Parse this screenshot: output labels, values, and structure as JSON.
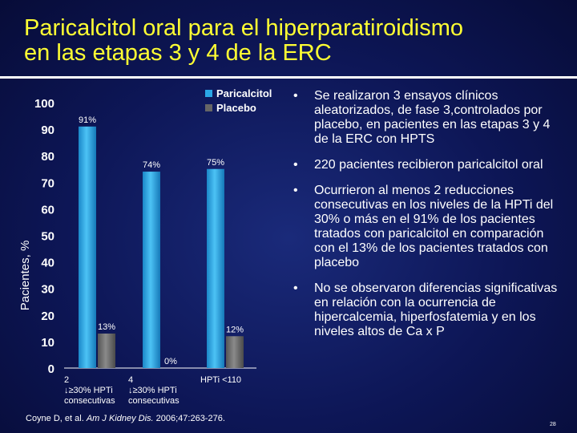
{
  "title_line1": "Paricalcitol oral para el hiperparatiroidismo",
  "title_line2": "en las etapas 3 y 4 de la ERC",
  "bullets": [
    "Se realizaron 3 ensayos clínicos aleatorizados, de fase 3,controlados por placebo, en pacientes en las etapas 3 y 4 de la ERC con HPTS",
    "220 pacientes recibieron paricalcitol oral",
    "Ocurrieron al menos 2 reducciones consecutivas en los niveles de la HPTi del 30% o más en el 91% de los pacientes tratados con paricalcitol en comparación con el 13% de los pacientes tratados con placebo",
    "No se observaron diferencias significativas en relación con la ocurrencia de hipercalcemia, hiperfosfatemia y en los niveles altos de Ca x P"
  ],
  "bullet_symbol": "•",
  "citation": {
    "before": "Coyne D, et al. ",
    "journal": "Am J Kidney Dis.",
    "after": " 2006;47:263-276."
  },
  "page_number": "28",
  "colors": {
    "background": "#0d1656",
    "title": "#ffff33",
    "paricalcitol": "#2aa7e6",
    "placebo": "#666666"
  },
  "chart_data": {
    "type": "bar",
    "categories": [
      [
        "2",
        "↓≥30% HPTi",
        "consecutivas"
      ],
      [
        "4",
        "↓≥30% HPTi",
        "consecutivas"
      ],
      [
        "HPTi <110"
      ]
    ],
    "series": [
      {
        "name": "Paricalcitol",
        "values": [
          91,
          74,
          75
        ],
        "labels": [
          "91%",
          "74%",
          "75%"
        ]
      },
      {
        "name": "Placebo",
        "values": [
          13,
          0,
          12
        ],
        "labels": [
          "13%",
          "0%",
          "12%"
        ]
      }
    ],
    "ylabel": "Pacientes, %",
    "ylim": [
      0,
      100
    ],
    "yticks": [
      "0",
      "10",
      "20",
      "30",
      "40",
      "50",
      "60",
      "70",
      "80",
      "90",
      "100"
    ],
    "grid": false,
    "legend": "top-right"
  }
}
